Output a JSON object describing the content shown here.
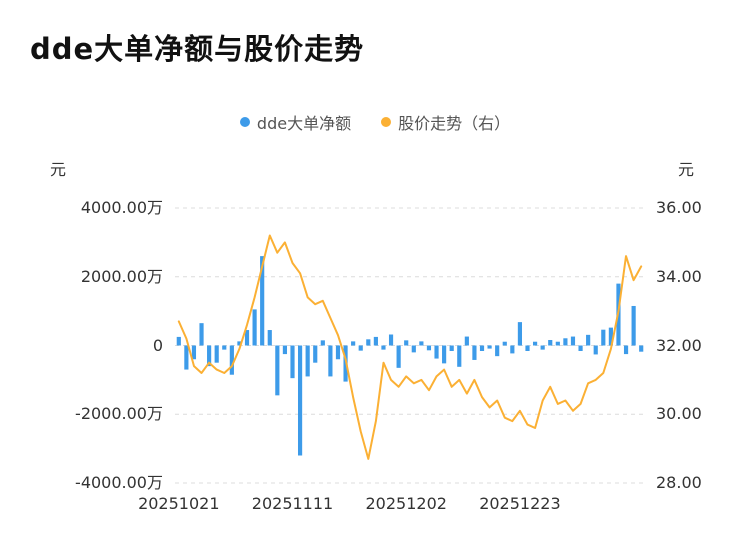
{
  "page": {
    "title": "dde大单净额与股价走势"
  },
  "chart_data": {
    "type": "bar+line",
    "title": "dde大单净额与股价走势",
    "legend_position": "top-center",
    "grid": true,
    "grid_color": "#dcdcdc",
    "text_color": "#333333",
    "left_axis": {
      "unit": "元",
      "ticks": [
        "4000.00万",
        "2000.00万",
        "0",
        "-2000.00万",
        "-4000.00万"
      ],
      "min": -4000,
      "max": 4000
    },
    "right_axis": {
      "unit": "元",
      "ticks": [
        "36.00",
        "34.00",
        "32.00",
        "30.00",
        "28.00"
      ],
      "min": 28,
      "max": 36
    },
    "x_tick_labels": [
      "20251021",
      "20251111",
      "20251202",
      "20251223"
    ],
    "x_tick_indices": [
      0,
      15,
      30,
      45
    ],
    "series": [
      {
        "name": "dde大单净额",
        "type": "bar",
        "axis": "left",
        "color": "#3D9BE9",
        "unit": "万元",
        "values": [
          250,
          -700,
          -400,
          650,
          -600,
          -500,
          -120,
          -850,
          120,
          450,
          1050,
          2600,
          450,
          -1450,
          -250,
          -950,
          -3200,
          -900,
          -500,
          150,
          -900,
          -400,
          -1050,
          120,
          -150,
          180,
          250,
          -120,
          320,
          -650,
          150,
          -200,
          120,
          -140,
          -380,
          -520,
          -160,
          -620,
          260,
          -420,
          -160,
          -90,
          -310,
          110,
          -230,
          680,
          -160,
          110,
          -120,
          160,
          110,
          210,
          260,
          -160,
          310,
          -260,
          460,
          520,
          1800,
          -250,
          1150,
          -180
        ]
      },
      {
        "name": "股价走势（右）",
        "type": "line",
        "axis": "right",
        "color": "#FBB034",
        "unit": "元",
        "values": [
          32.7,
          32.2,
          31.4,
          31.2,
          31.5,
          31.3,
          31.2,
          31.4,
          31.9,
          32.6,
          33.4,
          34.3,
          35.2,
          34.7,
          35.0,
          34.4,
          34.1,
          33.4,
          33.2,
          33.3,
          32.8,
          32.3,
          31.6,
          30.5,
          29.5,
          28.7,
          29.8,
          31.5,
          31.0,
          30.8,
          31.1,
          30.9,
          31.0,
          30.7,
          31.1,
          31.3,
          30.8,
          31.0,
          30.6,
          31.0,
          30.5,
          30.2,
          30.4,
          29.9,
          29.8,
          30.1,
          29.7,
          29.6,
          30.4,
          30.8,
          30.3,
          30.4,
          30.1,
          30.3,
          30.9,
          31.0,
          31.2,
          31.9,
          33.0,
          34.6,
          33.9,
          34.3
        ]
      }
    ]
  }
}
